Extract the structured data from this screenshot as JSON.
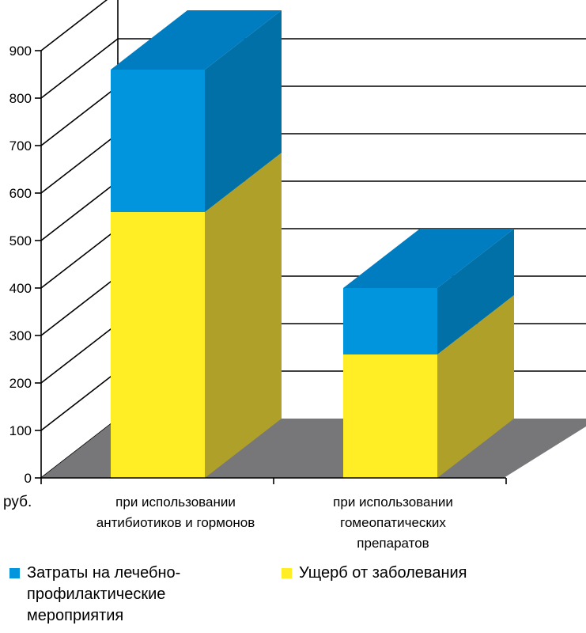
{
  "chart_data": {
    "type": "bar",
    "stacked": true,
    "three_d": true,
    "categories": [
      [
        "при использовании",
        "антибиотиков и гормонов"
      ],
      [
        "при использовании",
        "гомеопатических",
        "препаратов"
      ]
    ],
    "series": [
      {
        "name": "Ущерб от заболевания",
        "values": [
          560,
          260
        ],
        "color": "#FFED26",
        "side_color": "#AFA02A"
      },
      {
        "name": "Затраты на лечебно-профилактические мероприятия",
        "name_lines": [
          "Затраты на лечебно-",
          "профилактические",
          "мероприятия"
        ],
        "values": [
          300,
          140
        ],
        "color": "#0095DD",
        "side_color": "#0070A6",
        "top_color": "#007DC1"
      }
    ],
    "y_ticks": [
      "0",
      "100",
      "200",
      "300",
      "400",
      "500",
      "600",
      "700",
      "800",
      "900"
    ],
    "ylim": [
      0,
      900
    ],
    "y_unit": "руб.",
    "grid": true,
    "floor_color": "#77777A",
    "legend": "bottom"
  }
}
